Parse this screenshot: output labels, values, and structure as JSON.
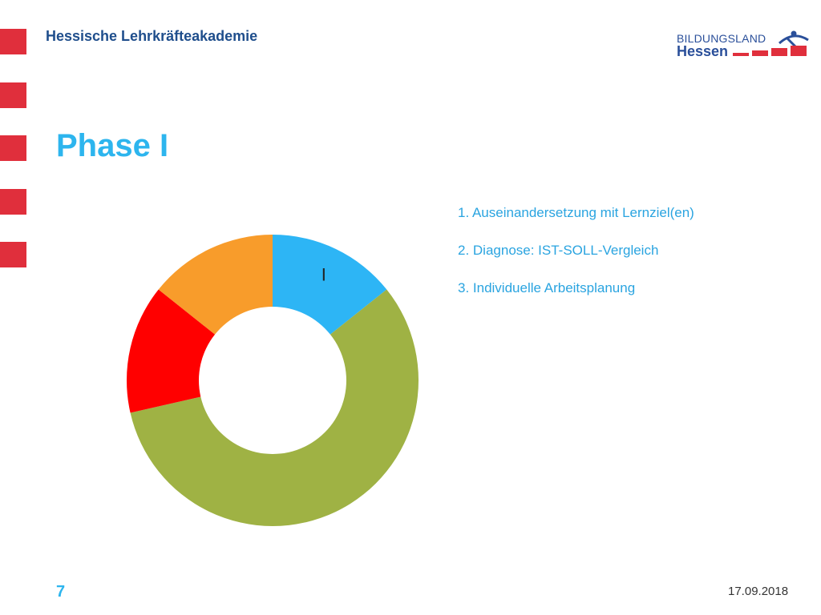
{
  "header": {
    "title": "Hessische Lehrkräfteakademie",
    "logo_line1": "BILDUNGSLAND",
    "logo_line2": "Hessen"
  },
  "slide": {
    "title": "Phase I",
    "items": [
      "1. Auseinandersetzung mit Lernziel(en)",
      "2. Diagnose: IST-SOLL-Vergleich",
      "3. Individuelle Arbeitsplanung"
    ]
  },
  "chart_data": {
    "type": "pie",
    "donut": true,
    "slices": [
      {
        "value": 1,
        "color": "#2db5f5",
        "label": "I"
      },
      {
        "value": 4,
        "color": "#9fb244",
        "label": ""
      },
      {
        "value": 1,
        "color": "#ff0000",
        "label": ""
      },
      {
        "value": 1,
        "color": "#f89c2b",
        "label": ""
      }
    ]
  },
  "colors": {
    "accent": "#2db5ee",
    "side_bar": "#e63946",
    "header_text": "#1f4e8c"
  },
  "footer": {
    "page_number": "7",
    "date": "17.09.2018"
  }
}
